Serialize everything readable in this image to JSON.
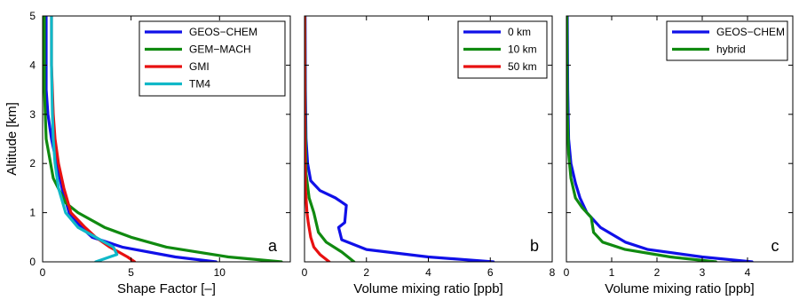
{
  "chart_data": [
    {
      "type": "line",
      "panel_label": "a",
      "xlabel": "Shape Factor [–]",
      "ylabel": "Altitude [km]",
      "xlim": [
        0,
        14
      ],
      "ylim": [
        0,
        5
      ],
      "xticks": [
        0,
        5,
        10
      ],
      "yticks": [
        0,
        1,
        2,
        3,
        4,
        5
      ],
      "legend": "top-right",
      "series": [
        {
          "name": "GEOS−CHEM",
          "color": "#1010e8",
          "x": [
            9.8,
            7.5,
            4.5,
            2.8,
            2.2,
            1.5,
            1.1,
            0.8,
            0.5,
            0.3,
            0.2,
            0.2,
            0.2
          ],
          "y": [
            0,
            0.1,
            0.3,
            0.5,
            0.7,
            1.0,
            1.5,
            2.0,
            2.5,
            3.0,
            3.5,
            4.0,
            5.0
          ]
        },
        {
          "name": "GEM−MACH",
          "color": "#108a10",
          "x": [
            13.5,
            10.5,
            7.0,
            5.0,
            3.5,
            2.0,
            1.3,
            0.6,
            0.2,
            0.1,
            0.1
          ],
          "y": [
            0,
            0.1,
            0.3,
            0.5,
            0.7,
            1.0,
            1.2,
            1.7,
            2.5,
            3.5,
            5.0
          ]
        },
        {
          "name": "GMI",
          "color": "#e81010",
          "x": [
            5.2,
            4.8,
            3.8,
            3.0,
            2.4,
            1.6,
            1.2,
            0.9,
            0.7,
            0.6,
            0.5,
            0.5
          ],
          "y": [
            0,
            0.1,
            0.3,
            0.5,
            0.7,
            1.0,
            1.5,
            2.0,
            2.5,
            3.0,
            4.0,
            5.0
          ]
        },
        {
          "name": "TM4",
          "color": "#10b8c8",
          "x": [
            3.0,
            4.2,
            4.0,
            3.0,
            2.0,
            1.3,
            0.9,
            0.7,
            0.6,
            0.55,
            0.5,
            0.5
          ],
          "y": [
            0,
            0.15,
            0.3,
            0.5,
            0.7,
            1.0,
            1.5,
            2.0,
            2.5,
            3.0,
            4.0,
            5.0
          ]
        }
      ]
    },
    {
      "type": "line",
      "panel_label": "b",
      "xlabel": "Volume mixing ratio [ppb]",
      "ylabel": "",
      "xlim": [
        0,
        8
      ],
      "ylim": [
        0,
        5
      ],
      "xticks": [
        0,
        2,
        4,
        6,
        8
      ],
      "yticks": [
        0,
        1,
        2,
        3,
        4,
        5
      ],
      "legend": "top-right",
      "series": [
        {
          "name": "0 km",
          "color": "#1010e8",
          "x": [
            6.1,
            4.0,
            2.0,
            1.2,
            1.1,
            1.3,
            1.35,
            1.0,
            0.5,
            0.2,
            0.1,
            0.05,
            0.03,
            0.02
          ],
          "y": [
            0,
            0.1,
            0.25,
            0.45,
            0.7,
            0.8,
            1.15,
            1.3,
            1.45,
            1.65,
            2.0,
            2.5,
            3.5,
            5.0
          ]
        },
        {
          "name": "10 km",
          "color": "#108a10",
          "x": [
            1.6,
            1.2,
            0.7,
            0.45,
            0.3,
            0.15,
            0.05,
            0.02,
            0.01
          ],
          "y": [
            0,
            0.2,
            0.4,
            0.6,
            1.0,
            1.3,
            1.8,
            3.0,
            5.0
          ]
        },
        {
          "name": "50 km",
          "color": "#e81010",
          "x": [
            0.8,
            0.5,
            0.3,
            0.2,
            0.12,
            0.08,
            0.03,
            0.01,
            0.0
          ],
          "y": [
            0,
            0.15,
            0.3,
            0.5,
            0.8,
            1.0,
            1.5,
            2.5,
            5.0
          ]
        }
      ]
    },
    {
      "type": "line",
      "panel_label": "c",
      "xlabel": "Volume mixing ratio [ppb]",
      "ylabel": "",
      "xlim": [
        0,
        5
      ],
      "ylim": [
        0,
        5
      ],
      "xticks": [
        0,
        1,
        2,
        3,
        4
      ],
      "yticks": [
        0,
        1,
        2,
        3,
        4,
        5
      ],
      "legend": "top-right",
      "series": [
        {
          "name": "GEOS−CHEM",
          "color": "#1010e8",
          "x": [
            4.1,
            3.0,
            1.8,
            1.3,
            0.75,
            0.45,
            0.3,
            0.2,
            0.1,
            0.05,
            0.03,
            0.02
          ],
          "y": [
            0,
            0.1,
            0.25,
            0.4,
            0.7,
            1.0,
            1.3,
            1.6,
            2.0,
            2.5,
            3.5,
            5.0
          ]
        },
        {
          "name": "hybrid",
          "color": "#108a10",
          "x": [
            3.3,
            2.3,
            1.3,
            0.8,
            0.6,
            0.55,
            0.35,
            0.2,
            0.1,
            0.05,
            0.02,
            0.01
          ],
          "y": [
            0,
            0.1,
            0.25,
            0.4,
            0.6,
            0.9,
            1.1,
            1.3,
            1.7,
            2.2,
            3.0,
            5.0
          ]
        }
      ]
    }
  ]
}
